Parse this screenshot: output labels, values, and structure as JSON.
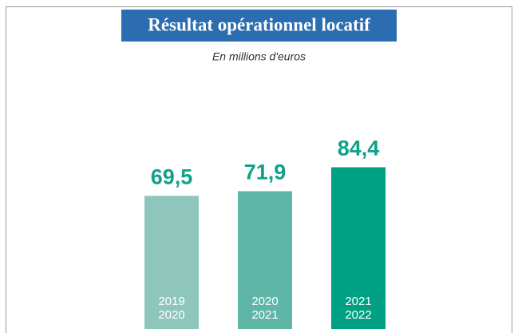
{
  "chart_data": {
    "type": "bar",
    "title": "Résultat opérationnel locatif",
    "subtitle": "En millions d'euros",
    "categories": [
      [
        "2019",
        "2020"
      ],
      [
        "2020",
        "2021"
      ],
      [
        "2021",
        "2022"
      ]
    ],
    "values": [
      69.5,
      71.9,
      84.4
    ],
    "value_labels": [
      "69,5",
      "71,9",
      "84,4"
    ],
    "colors": [
      "#8fc6bc",
      "#5db6a6",
      "#00a084"
    ],
    "label_color": "#11a088",
    "title_background": "#2c6cb0"
  }
}
